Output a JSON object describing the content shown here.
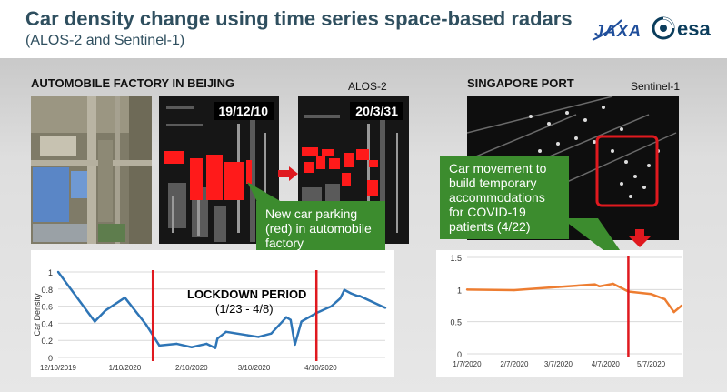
{
  "header": {
    "title": "Car density change using time series space-based radars",
    "subtitle": "(ALOS-2 and Sentinel-1)",
    "logo_jaxa": "JAXA",
    "logo_esa": "esa"
  },
  "beijing": {
    "heading": "AUTOMOBILE FACTORY IN BEIJING",
    "satellite": "ALOS-2",
    "date_before": "19/12/10",
    "date_after": "20/3/31",
    "callout": "New car parking (red) in automobile factory",
    "lockdown_label": "LOCKDOWN PERIOD",
    "lockdown_dates": "(1/23 - 4/8)"
  },
  "singapore": {
    "heading": "SINGAPORE PORT",
    "satellite": "Sentinel-1",
    "callout": "Car movement to build temporary accommodations for COVID-19 patients (4/22)"
  },
  "colors": {
    "beijing_line": "#2e75b6",
    "singapore_line": "#ed7d31",
    "marker": "#e0191f",
    "callout": "#3c8c2e"
  },
  "chart_data": [
    {
      "type": "line",
      "title": "",
      "xlabel": "",
      "ylabel": "Car Density",
      "ylim": [
        0,
        1
      ],
      "yticks": [
        "0",
        "0.2",
        "0.4",
        "0.6",
        "0.8",
        "1"
      ],
      "xticks": [
        "12/10/2019",
        "1/10/2020",
        "2/10/2020",
        "3/10/2020",
        "4/10/2020"
      ],
      "grid": true,
      "series": [
        {
          "x": [
            "2019-12-10",
            "2019-12-27",
            "2020-01-01",
            "2020-01-10",
            "2020-01-20",
            "2020-01-26",
            "2020-02-03",
            "2020-02-10",
            "2020-02-17",
            "2020-02-21",
            "2020-02-22",
            "2020-02-26",
            "2020-03-07",
            "2020-03-12",
            "2020-03-18",
            "2020-03-25",
            "2020-03-27",
            "2020-03-29",
            "2020-04-01",
            "2020-04-08",
            "2020-04-15",
            "2020-04-19",
            "2020-04-21",
            "2020-04-24",
            "2020-04-27",
            "2020-04-28",
            "2020-05-10"
          ],
          "values": [
            1.0,
            0.42,
            0.55,
            0.7,
            0.38,
            0.14,
            0.16,
            0.12,
            0.16,
            0.11,
            0.22,
            0.3,
            0.26,
            0.24,
            0.28,
            0.47,
            0.44,
            0.15,
            0.42,
            0.52,
            0.6,
            0.69,
            0.79,
            0.75,
            0.72,
            0.72,
            0.58
          ]
        }
      ],
      "markers": [
        "2020-01-23",
        "2020-04-08"
      ]
    },
    {
      "type": "line",
      "title": "",
      "xlabel": "",
      "ylabel": "",
      "ylim": [
        0,
        1.5
      ],
      "yticks": [
        "0",
        "0.5",
        "1",
        "1.5"
      ],
      "xticks": [
        "1/7/2020",
        "2/7/2020",
        "3/7/2020",
        "4/7/2020",
        "5/7/2020"
      ],
      "grid": true,
      "series": [
        {
          "x": [
            "2020-01-07",
            "2020-02-07",
            "2020-03-07",
            "2020-03-31",
            "2020-04-03",
            "2020-04-12",
            "2020-04-22",
            "2020-05-07",
            "2020-05-16",
            "2020-05-22",
            "2020-05-27"
          ],
          "values": [
            1.0,
            0.99,
            1.04,
            1.08,
            1.05,
            1.09,
            0.97,
            0.93,
            0.85,
            0.65,
            0.75
          ]
        }
      ],
      "markers": [
        "2020-04-22"
      ]
    }
  ]
}
